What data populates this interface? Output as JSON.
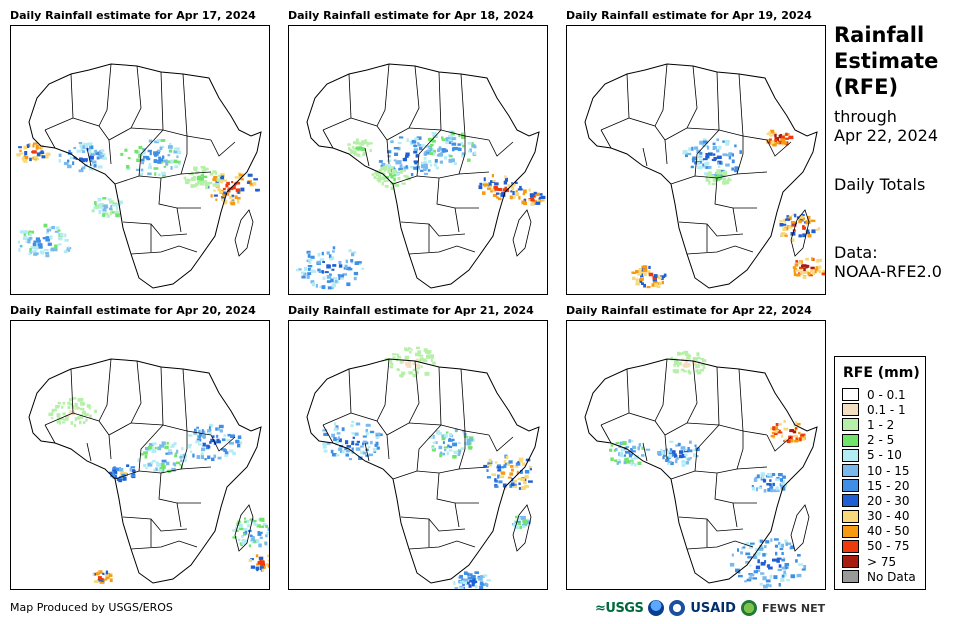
{
  "panels": [
    {
      "title": "Daily Rainfall estimate for Apr 17, 2024"
    },
    {
      "title": "Daily Rainfall estimate for Apr 18, 2024"
    },
    {
      "title": "Daily Rainfall estimate for Apr 19, 2024"
    },
    {
      "title": "Daily Rainfall estimate for Apr 20, 2024"
    },
    {
      "title": "Daily Rainfall estimate for Apr 21, 2024"
    },
    {
      "title": "Daily Rainfall estimate for Apr 22, 2024"
    }
  ],
  "side": {
    "title_line1": "Rainfall",
    "title_line2": "Estimate",
    "title_line3": "(RFE)",
    "through_label": "through",
    "through_date": "Apr 22, 2024",
    "totals": "Daily Totals",
    "data_label": "Data:",
    "data_source": "NOAA-RFE2.0"
  },
  "legend": {
    "title": "RFE (mm)",
    "items": [
      {
        "label": "0 - 0.1",
        "color": "#ffffff"
      },
      {
        "label": "0.1 - 1",
        "color": "#f2dfc2"
      },
      {
        "label": "1 - 2",
        "color": "#b6f0a8"
      },
      {
        "label": "2 - 5",
        "color": "#6fe36a"
      },
      {
        "label": "5 - 10",
        "color": "#b4ecf3"
      },
      {
        "label": "10 - 15",
        "color": "#79b9ee"
      },
      {
        "label": "15 - 20",
        "color": "#3f8fe6"
      },
      {
        "label": "20 - 30",
        "color": "#1f5fd3"
      },
      {
        "label": "30 - 40",
        "color": "#f7d87a"
      },
      {
        "label": "40 - 50",
        "color": "#f59a12"
      },
      {
        "label": "50 - 75",
        "color": "#ee3a0c"
      },
      {
        "label": "> 75",
        "color": "#a81d12"
      },
      {
        "label": "No Data",
        "color": "#999999"
      }
    ]
  },
  "credit": "Map Produced by USGS/EROS",
  "logos": {
    "usgs": "≈USGS",
    "usaid": "USAID",
    "fews": "FEWS NET"
  }
}
